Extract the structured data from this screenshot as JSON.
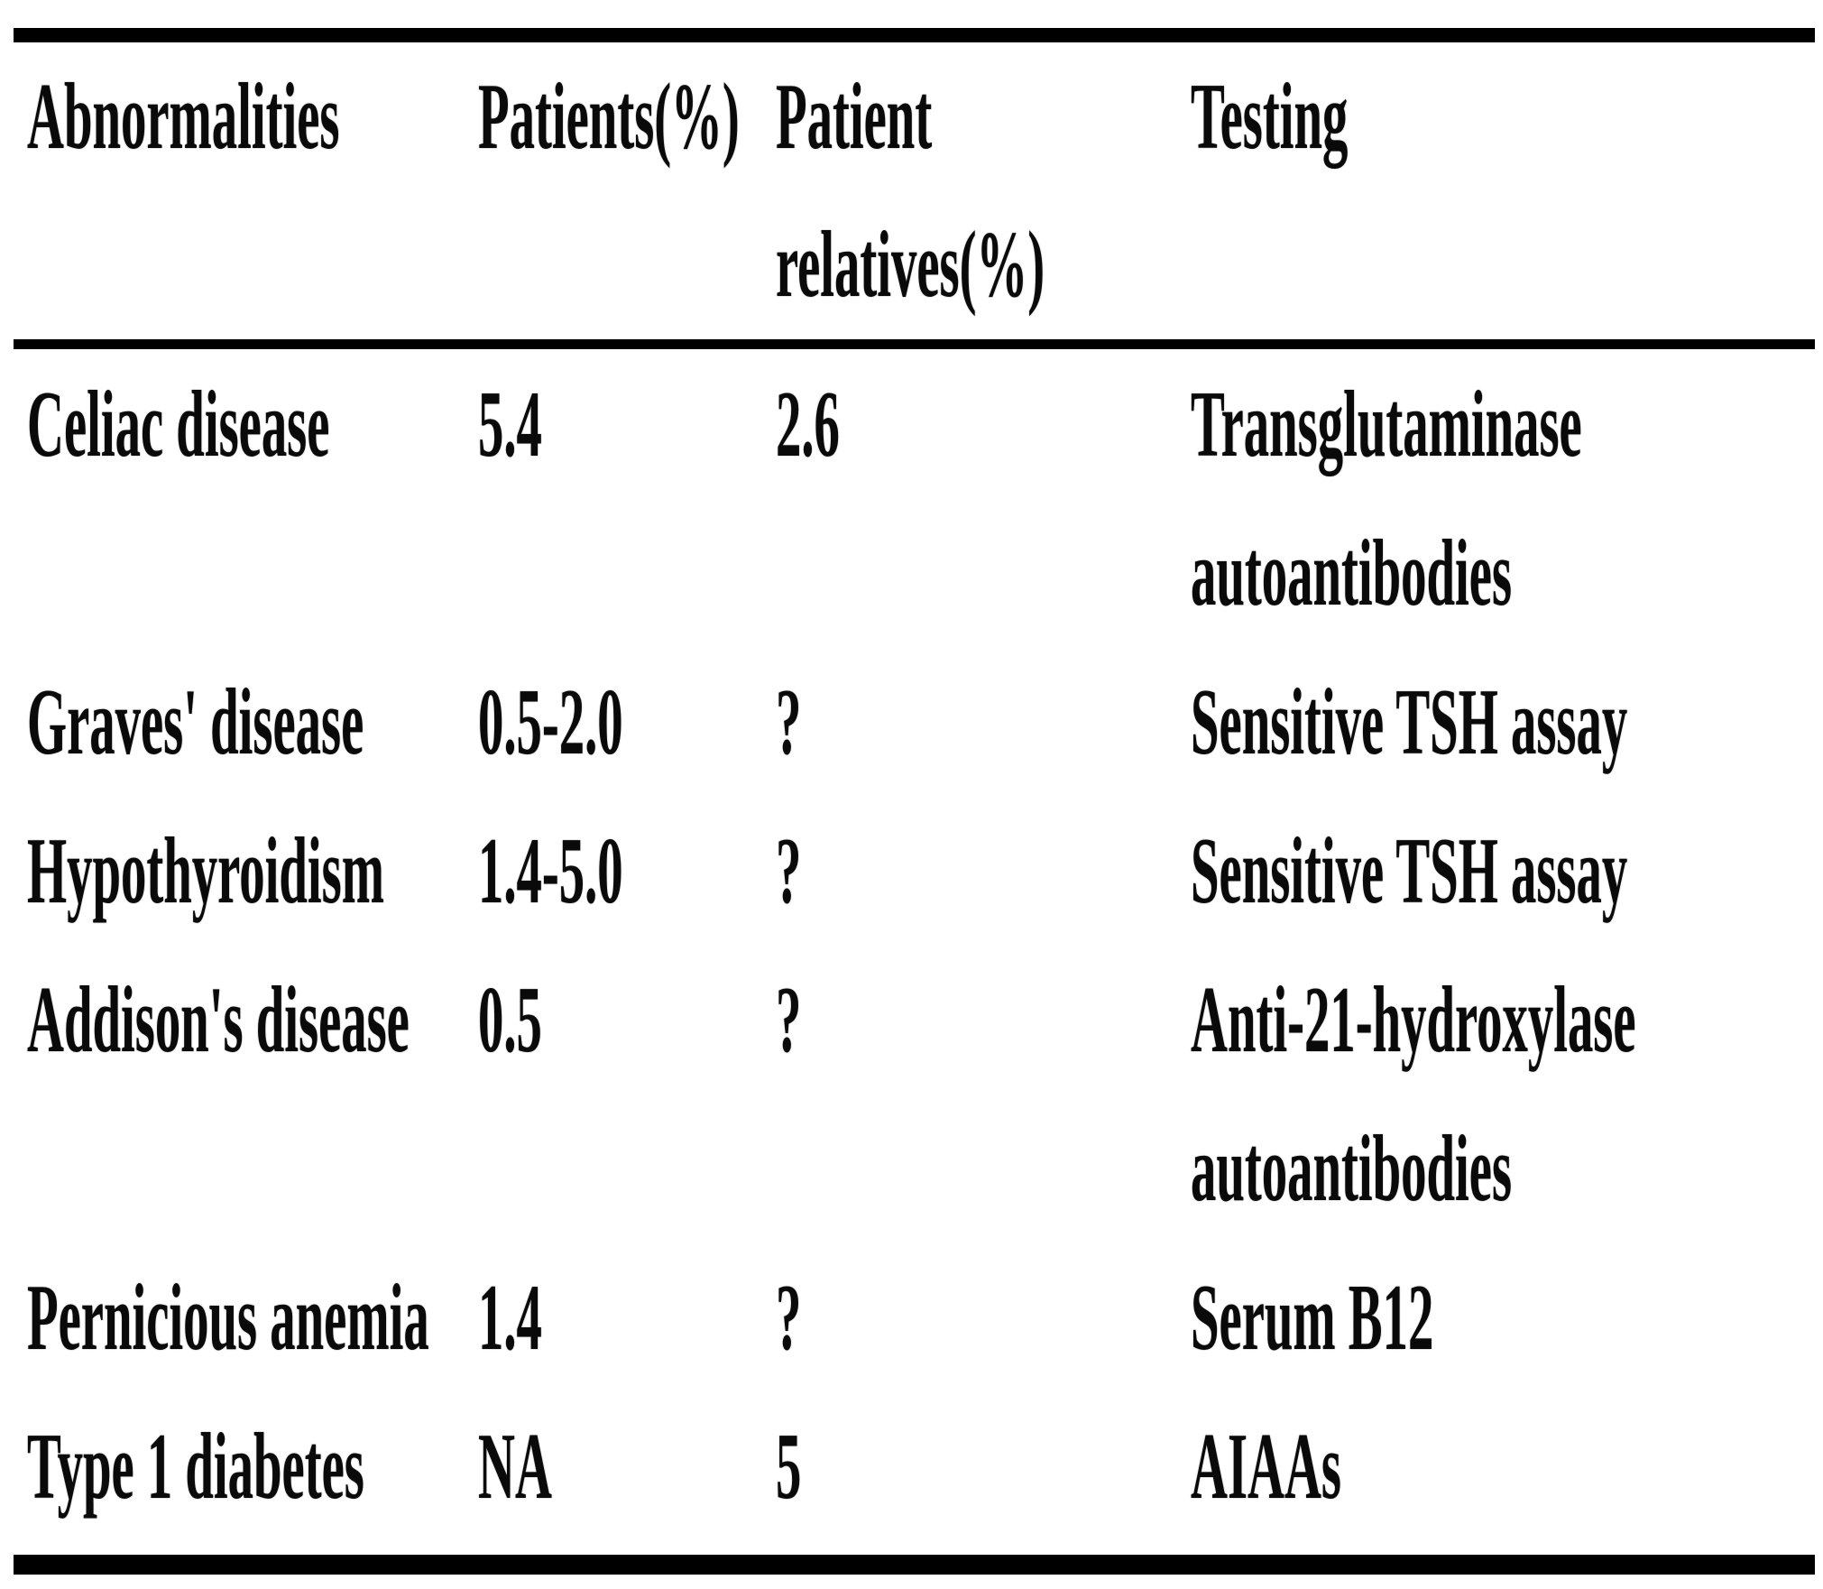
{
  "table": {
    "columns": [
      "Abnormalities",
      "Patients(%)",
      "Patient\nrelatives(%)",
      "Testing"
    ],
    "rows": [
      {
        "abnormality": "Celiac disease",
        "patients_pct": "5.4",
        "relatives_pct": "2.6",
        "testing": "Transglutaminase\nautoantibodies"
      },
      {
        "abnormality": "Graves' disease",
        "patients_pct": "0.5-2.0",
        "relatives_pct": "?",
        "testing": "Sensitive TSH assay"
      },
      {
        "abnormality": "Hypothyroidism",
        "patients_pct": "1.4-5.0",
        "relatives_pct": "?",
        "testing": "Sensitive TSH assay"
      },
      {
        "abnormality": "Addison's disease",
        "patients_pct": "0.5",
        "relatives_pct": "?",
        "testing": "Anti-21-hydroxylase\nautoantibodies"
      },
      {
        "abnormality": "Pernicious anemia",
        "patients_pct": "1.4",
        "relatives_pct": "?",
        "testing": "Serum B12"
      },
      {
        "abnormality": "Type 1 diabetes",
        "patients_pct": "NA",
        "relatives_pct": "5",
        "testing": "AIAAs"
      }
    ],
    "colors": {
      "text": "#0a0a0a",
      "rule": "#000000",
      "background": "#ffffff"
    }
  }
}
